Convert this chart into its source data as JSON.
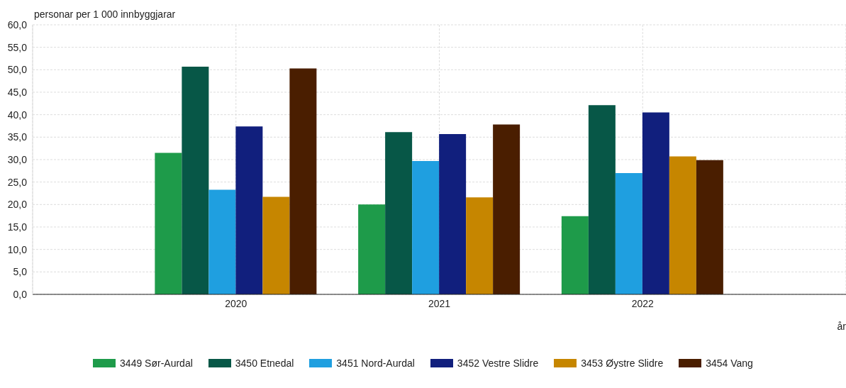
{
  "chart_data": {
    "type": "bar",
    "ylabel": "personar per 1 000 innbyggjarar",
    "xlabel": "år",
    "x": [
      2020,
      2021,
      2022
    ],
    "xlim": [
      2019,
      2023
    ],
    "xticks": [
      2020,
      2021,
      2022
    ],
    "ylim": [
      0,
      60
    ],
    "yticks": [
      {
        "value": 0,
        "label": "0,0"
      },
      {
        "value": 5,
        "label": "5,0"
      },
      {
        "value": 10,
        "label": "10,0"
      },
      {
        "value": 15,
        "label": "15,0"
      },
      {
        "value": 20,
        "label": "20,0"
      },
      {
        "value": 25,
        "label": "25,0"
      },
      {
        "value": 30,
        "label": "30,0"
      },
      {
        "value": 35,
        "label": "35,0"
      },
      {
        "value": 40,
        "label": "40,0"
      },
      {
        "value": 45,
        "label": "45,0"
      },
      {
        "value": 50,
        "label": "50,0"
      },
      {
        "value": 55,
        "label": "55,0"
      },
      {
        "value": 60,
        "label": "60,0"
      }
    ],
    "grid": true,
    "legend": "bottom",
    "series": [
      {
        "name": "3449 Sør-Aurdal",
        "color": "#1e9b4a",
        "values": [
          31.5,
          20.0,
          17.4
        ]
      },
      {
        "name": "3450 Etnedal",
        "color": "#075747",
        "values": [
          50.7,
          36.1,
          42.1
        ]
      },
      {
        "name": "3451 Nord-Aurdal",
        "color": "#1f9fe0",
        "values": [
          23.3,
          29.7,
          27.0
        ]
      },
      {
        "name": "3452 Vestre Slidre",
        "color": "#111f7d",
        "values": [
          37.4,
          35.7,
          40.5
        ]
      },
      {
        "name": "3453 Øystre Slidre",
        "color": "#c68600",
        "values": [
          21.7,
          21.6,
          30.7
        ]
      },
      {
        "name": "3454 Vang",
        "color": "#4a1e00",
        "values": [
          50.3,
          37.8,
          29.9
        ]
      }
    ]
  }
}
